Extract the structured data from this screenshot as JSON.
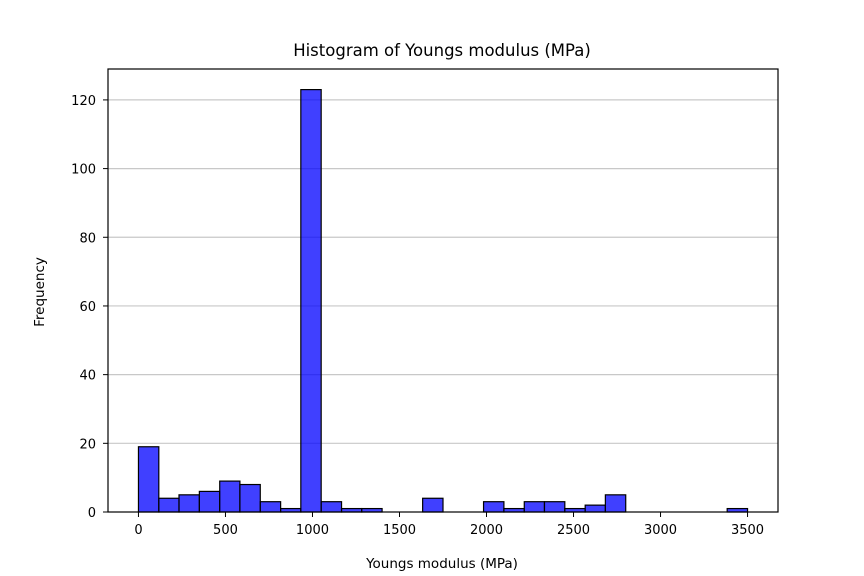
{
  "chart_data": {
    "type": "bar",
    "title": "Histogram of Youngs modulus (MPa)",
    "xlabel": "Youngs modulus (MPa)",
    "ylabel": "Frequency",
    "xlim": [
      -175,
      3675
    ],
    "ylim": [
      0,
      129
    ],
    "x_ticks": [
      0,
      500,
      1000,
      1500,
      2000,
      2500,
      3000,
      3500
    ],
    "y_ticks": [
      0,
      20,
      40,
      60,
      80,
      100,
      120
    ],
    "grid": "y",
    "bar_color": "#0000FF",
    "bar_alpha": 0.75,
    "bar_edge_color": "#000000",
    "bins": [
      {
        "x0": 0,
        "x1": 117,
        "count": 19
      },
      {
        "x0": 117,
        "x1": 233,
        "count": 4
      },
      {
        "x0": 233,
        "x1": 350,
        "count": 5
      },
      {
        "x0": 350,
        "x1": 467,
        "count": 6
      },
      {
        "x0": 467,
        "x1": 583,
        "count": 9
      },
      {
        "x0": 583,
        "x1": 700,
        "count": 8
      },
      {
        "x0": 700,
        "x1": 817,
        "count": 3
      },
      {
        "x0": 817,
        "x1": 933,
        "count": 1
      },
      {
        "x0": 933,
        "x1": 1050,
        "count": 123
      },
      {
        "x0": 1050,
        "x1": 1167,
        "count": 3
      },
      {
        "x0": 1167,
        "x1": 1283,
        "count": 1
      },
      {
        "x0": 1283,
        "x1": 1400,
        "count": 1
      },
      {
        "x0": 1400,
        "x1": 1517,
        "count": 0
      },
      {
        "x0": 1517,
        "x1": 1633,
        "count": 0
      },
      {
        "x0": 1633,
        "x1": 1750,
        "count": 4
      },
      {
        "x0": 1750,
        "x1": 1867,
        "count": 0
      },
      {
        "x0": 1867,
        "x1": 1983,
        "count": 0
      },
      {
        "x0": 1983,
        "x1": 2100,
        "count": 3
      },
      {
        "x0": 2100,
        "x1": 2217,
        "count": 1
      },
      {
        "x0": 2217,
        "x1": 2333,
        "count": 3
      },
      {
        "x0": 2333,
        "x1": 2450,
        "count": 3
      },
      {
        "x0": 2450,
        "x1": 2567,
        "count": 1
      },
      {
        "x0": 2567,
        "x1": 2683,
        "count": 2
      },
      {
        "x0": 2683,
        "x1": 2800,
        "count": 5
      },
      {
        "x0": 2800,
        "x1": 2917,
        "count": 0
      },
      {
        "x0": 2917,
        "x1": 3033,
        "count": 0
      },
      {
        "x0": 3033,
        "x1": 3150,
        "count": 0
      },
      {
        "x0": 3150,
        "x1": 3267,
        "count": 0
      },
      {
        "x0": 3267,
        "x1": 3383,
        "count": 0
      },
      {
        "x0": 3383,
        "x1": 3500,
        "count": 1
      }
    ]
  }
}
